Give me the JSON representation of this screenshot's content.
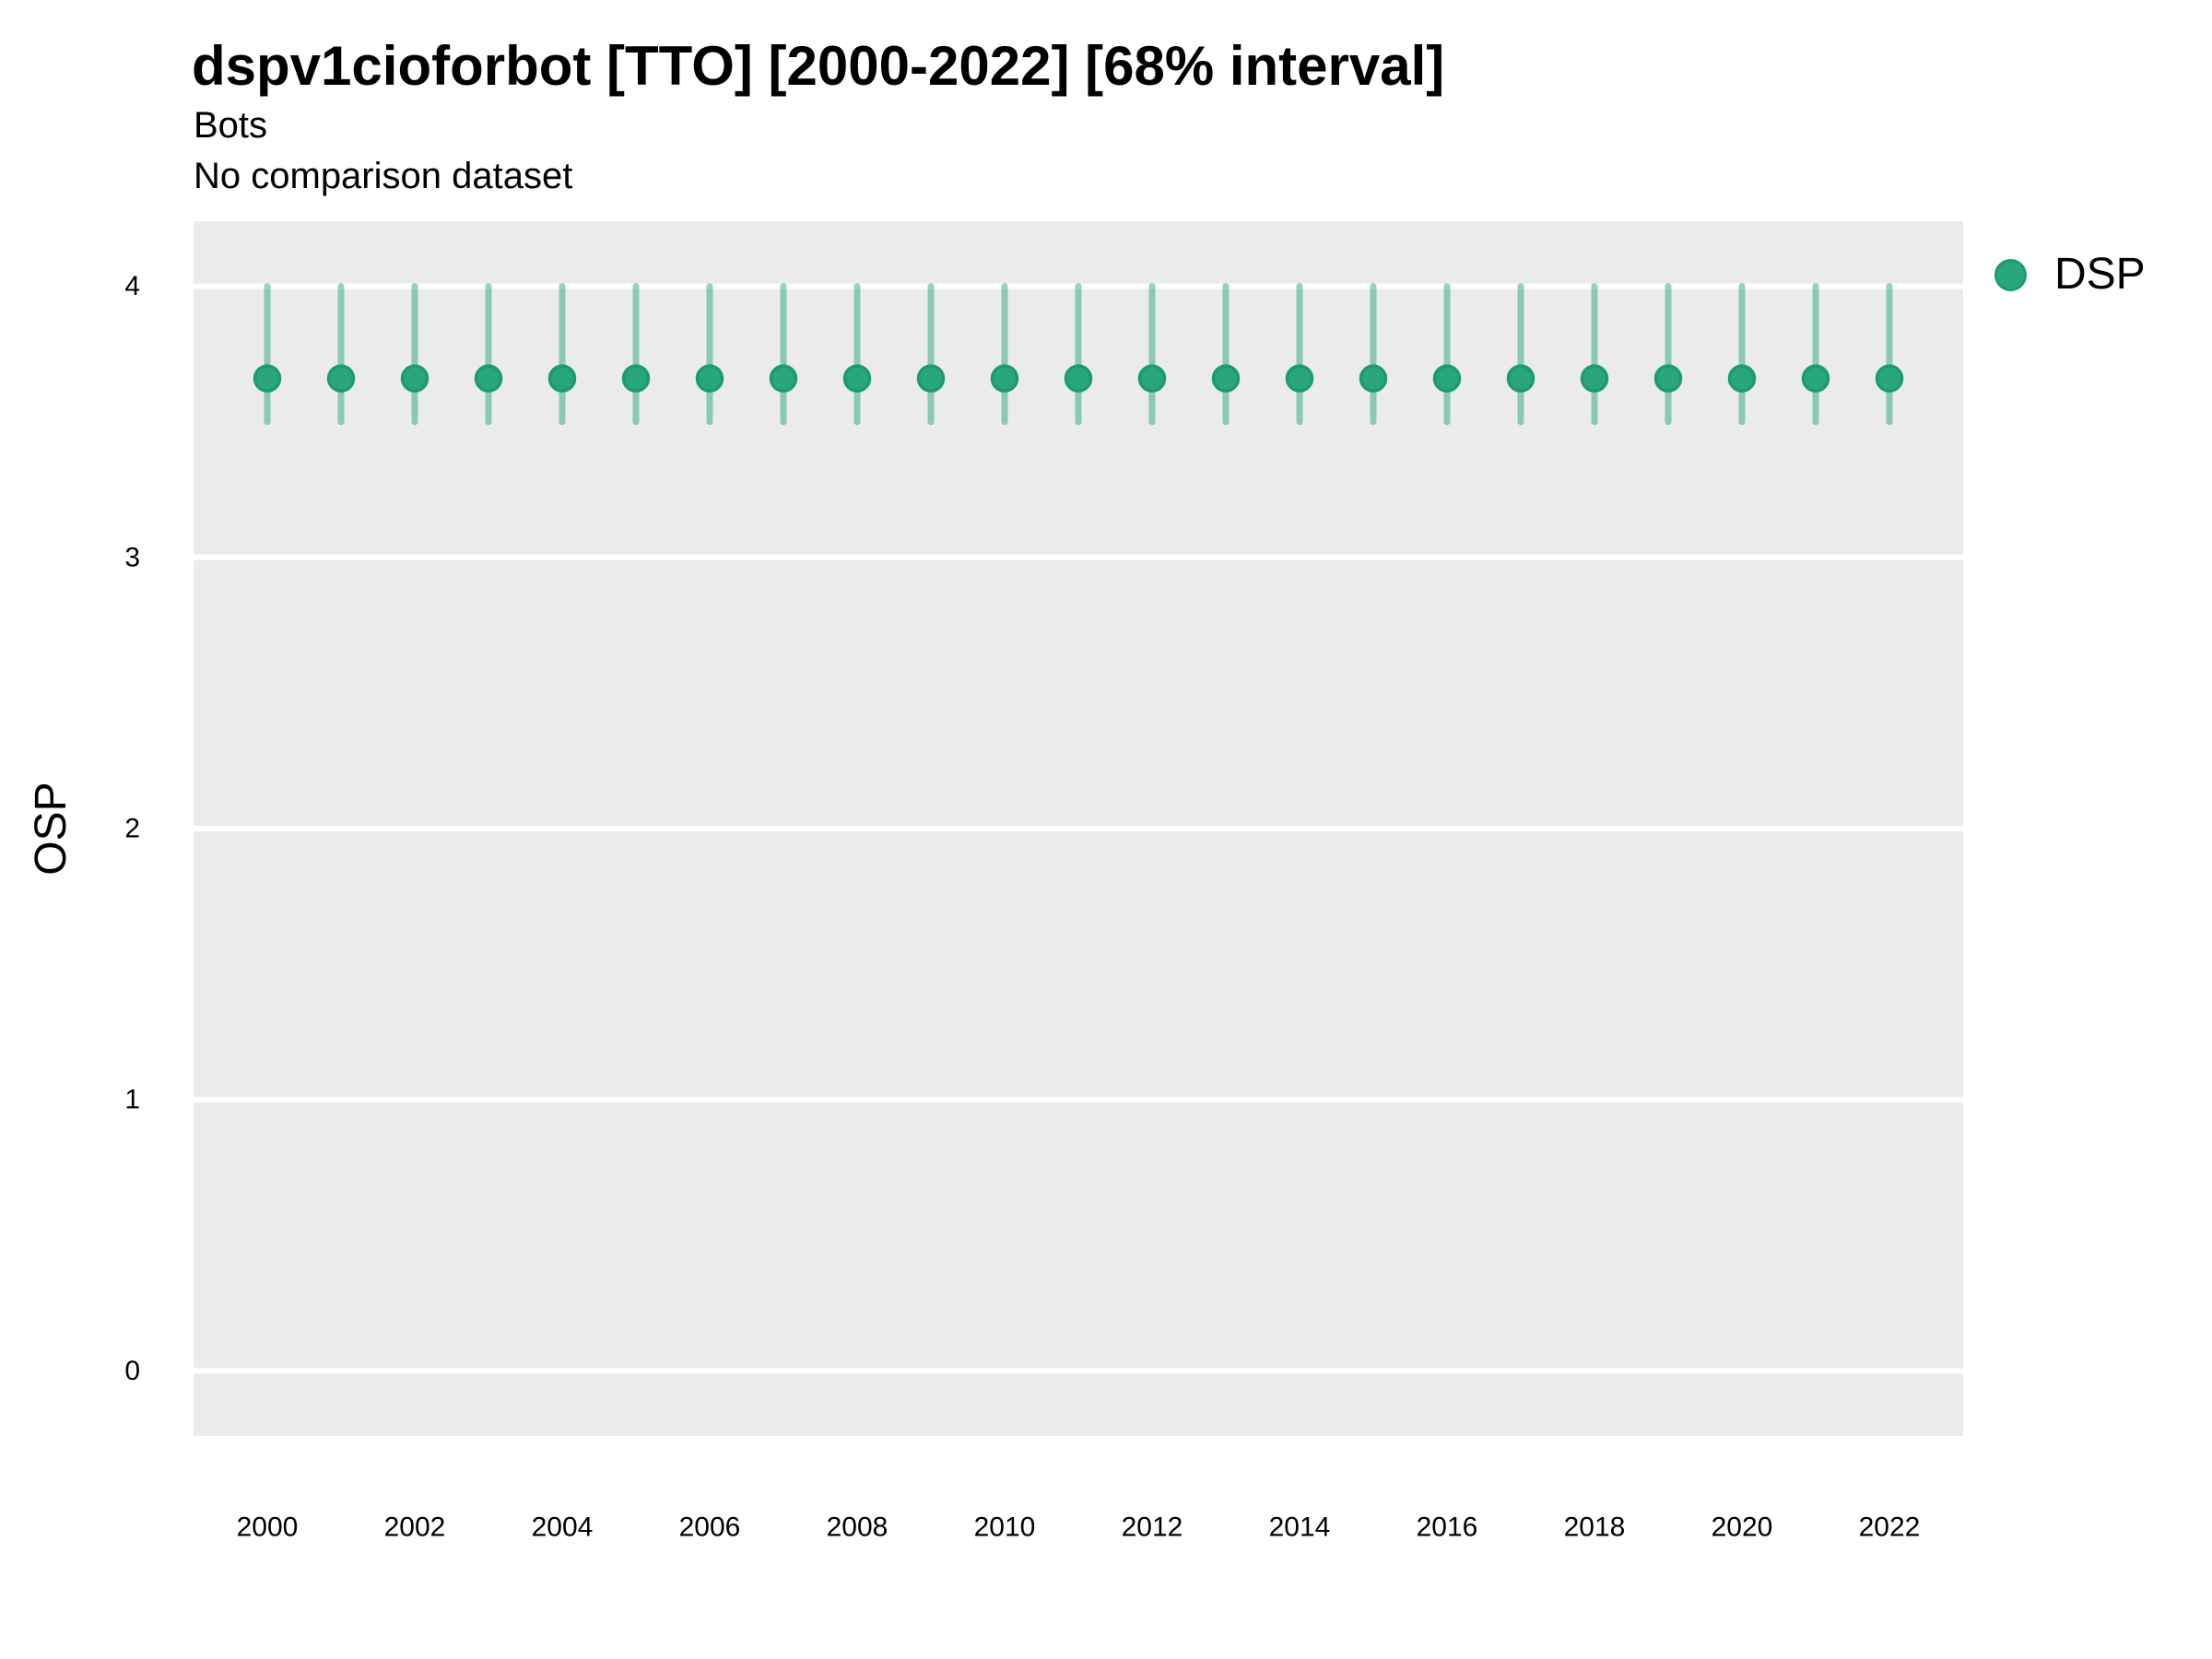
{
  "chart_data": {
    "type": "pointrange",
    "title": "dspv1cioforbot [TTO] [2000-2022] [68% interval]",
    "subtitle": "Bots",
    "note": "No comparison dataset",
    "xlabel": "",
    "ylabel": "OSP",
    "interval": "68%",
    "x": [
      2000,
      2001,
      2002,
      2003,
      2004,
      2005,
      2006,
      2007,
      2008,
      2009,
      2010,
      2011,
      2012,
      2013,
      2014,
      2015,
      2016,
      2017,
      2018,
      2019,
      2020,
      2021,
      2022
    ],
    "series": [
      {
        "name": "DSP",
        "point_color": "#29a67c",
        "point_edge_color": "#1b9c70",
        "interval_color": "rgba(42,168,122,0.5)",
        "values": [
          3.66,
          3.66,
          3.66,
          3.66,
          3.66,
          3.66,
          3.66,
          3.66,
          3.66,
          3.66,
          3.66,
          3.66,
          3.66,
          3.66,
          3.66,
          3.66,
          3.66,
          3.66,
          3.66,
          3.66,
          3.66,
          3.66,
          3.66
        ],
        "low": [
          3.5,
          3.5,
          3.5,
          3.5,
          3.5,
          3.5,
          3.5,
          3.5,
          3.5,
          3.5,
          3.5,
          3.5,
          3.5,
          3.5,
          3.5,
          3.5,
          3.5,
          3.5,
          3.5,
          3.5,
          3.5,
          3.5,
          3.5
        ],
        "high": [
          4.0,
          4.0,
          4.0,
          4.0,
          4.0,
          4.0,
          4.0,
          4.0,
          4.0,
          4.0,
          4.0,
          4.0,
          4.0,
          4.0,
          4.0,
          4.0,
          4.0,
          4.0,
          4.0,
          4.0,
          4.0,
          4.0,
          4.0
        ]
      }
    ],
    "xlim": [
      1999,
      2023
    ],
    "ylim": [
      -0.24,
      4.24
    ],
    "x_ticks": [
      2000,
      2002,
      2004,
      2006,
      2008,
      2010,
      2012,
      2014,
      2016,
      2018,
      2020,
      2022
    ],
    "y_ticks": [
      0,
      1,
      2,
      3,
      4
    ],
    "grid": "horizontal-major",
    "legend_position": "right-top",
    "panel_bg": "#ebebeb",
    "gridline_color": "#ffffff",
    "text_color": "#000000"
  }
}
